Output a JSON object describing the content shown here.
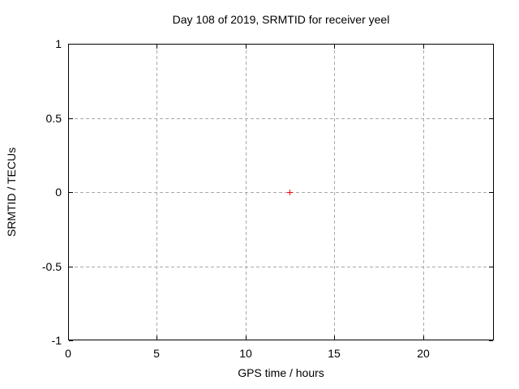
{
  "chart_data": {
    "type": "scatter",
    "title": "Day 108 of 2019, SRMTID for receiver yeel",
    "xlabel": "GPS time / hours",
    "ylabel": "SRMTID / TECUs",
    "xlim": [
      0,
      24
    ],
    "ylim": [
      -1,
      1
    ],
    "x_ticks": [
      0,
      5,
      10,
      15,
      20
    ],
    "y_ticks": [
      1,
      0.5,
      0,
      -0.5,
      -1
    ],
    "grid": true,
    "legend": "none",
    "series": [
      {
        "name": "SRMTID",
        "marker": "plus",
        "color": "#ff0000",
        "points": [
          {
            "x": 12.5,
            "y": 0
          }
        ]
      }
    ]
  },
  "colors": {
    "background": "#ffffff",
    "border": "#000000",
    "grid": "#a8a8a8",
    "text": "#000000",
    "point": "#ff0000"
  }
}
